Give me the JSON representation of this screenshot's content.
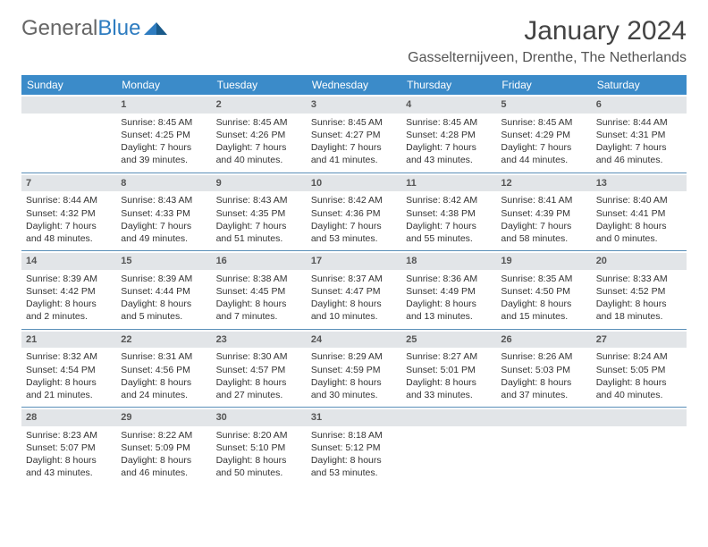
{
  "logo": {
    "text1": "General",
    "text2": "Blue"
  },
  "title": "January 2024",
  "location": "Gasselternijveen, Drenthe, The Netherlands",
  "colors": {
    "header_bg": "#3b8bc9",
    "header_text": "#ffffff",
    "daynum_bg": "#e2e5e8",
    "week_border": "#5a8fb8",
    "logo_blue": "#2e7cc0"
  },
  "day_labels": [
    "Sunday",
    "Monday",
    "Tuesday",
    "Wednesday",
    "Thursday",
    "Friday",
    "Saturday"
  ],
  "weeks": [
    [
      {
        "num": "",
        "info": ""
      },
      {
        "num": "1",
        "info": "Sunrise: 8:45 AM\nSunset: 4:25 PM\nDaylight: 7 hours and 39 minutes."
      },
      {
        "num": "2",
        "info": "Sunrise: 8:45 AM\nSunset: 4:26 PM\nDaylight: 7 hours and 40 minutes."
      },
      {
        "num": "3",
        "info": "Sunrise: 8:45 AM\nSunset: 4:27 PM\nDaylight: 7 hours and 41 minutes."
      },
      {
        "num": "4",
        "info": "Sunrise: 8:45 AM\nSunset: 4:28 PM\nDaylight: 7 hours and 43 minutes."
      },
      {
        "num": "5",
        "info": "Sunrise: 8:45 AM\nSunset: 4:29 PM\nDaylight: 7 hours and 44 minutes."
      },
      {
        "num": "6",
        "info": "Sunrise: 8:44 AM\nSunset: 4:31 PM\nDaylight: 7 hours and 46 minutes."
      }
    ],
    [
      {
        "num": "7",
        "info": "Sunrise: 8:44 AM\nSunset: 4:32 PM\nDaylight: 7 hours and 48 minutes."
      },
      {
        "num": "8",
        "info": "Sunrise: 8:43 AM\nSunset: 4:33 PM\nDaylight: 7 hours and 49 minutes."
      },
      {
        "num": "9",
        "info": "Sunrise: 8:43 AM\nSunset: 4:35 PM\nDaylight: 7 hours and 51 minutes."
      },
      {
        "num": "10",
        "info": "Sunrise: 8:42 AM\nSunset: 4:36 PM\nDaylight: 7 hours and 53 minutes."
      },
      {
        "num": "11",
        "info": "Sunrise: 8:42 AM\nSunset: 4:38 PM\nDaylight: 7 hours and 55 minutes."
      },
      {
        "num": "12",
        "info": "Sunrise: 8:41 AM\nSunset: 4:39 PM\nDaylight: 7 hours and 58 minutes."
      },
      {
        "num": "13",
        "info": "Sunrise: 8:40 AM\nSunset: 4:41 PM\nDaylight: 8 hours and 0 minutes."
      }
    ],
    [
      {
        "num": "14",
        "info": "Sunrise: 8:39 AM\nSunset: 4:42 PM\nDaylight: 8 hours and 2 minutes."
      },
      {
        "num": "15",
        "info": "Sunrise: 8:39 AM\nSunset: 4:44 PM\nDaylight: 8 hours and 5 minutes."
      },
      {
        "num": "16",
        "info": "Sunrise: 8:38 AM\nSunset: 4:45 PM\nDaylight: 8 hours and 7 minutes."
      },
      {
        "num": "17",
        "info": "Sunrise: 8:37 AM\nSunset: 4:47 PM\nDaylight: 8 hours and 10 minutes."
      },
      {
        "num": "18",
        "info": "Sunrise: 8:36 AM\nSunset: 4:49 PM\nDaylight: 8 hours and 13 minutes."
      },
      {
        "num": "19",
        "info": "Sunrise: 8:35 AM\nSunset: 4:50 PM\nDaylight: 8 hours and 15 minutes."
      },
      {
        "num": "20",
        "info": "Sunrise: 8:33 AM\nSunset: 4:52 PM\nDaylight: 8 hours and 18 minutes."
      }
    ],
    [
      {
        "num": "21",
        "info": "Sunrise: 8:32 AM\nSunset: 4:54 PM\nDaylight: 8 hours and 21 minutes."
      },
      {
        "num": "22",
        "info": "Sunrise: 8:31 AM\nSunset: 4:56 PM\nDaylight: 8 hours and 24 minutes."
      },
      {
        "num": "23",
        "info": "Sunrise: 8:30 AM\nSunset: 4:57 PM\nDaylight: 8 hours and 27 minutes."
      },
      {
        "num": "24",
        "info": "Sunrise: 8:29 AM\nSunset: 4:59 PM\nDaylight: 8 hours and 30 minutes."
      },
      {
        "num": "25",
        "info": "Sunrise: 8:27 AM\nSunset: 5:01 PM\nDaylight: 8 hours and 33 minutes."
      },
      {
        "num": "26",
        "info": "Sunrise: 8:26 AM\nSunset: 5:03 PM\nDaylight: 8 hours and 37 minutes."
      },
      {
        "num": "27",
        "info": "Sunrise: 8:24 AM\nSunset: 5:05 PM\nDaylight: 8 hours and 40 minutes."
      }
    ],
    [
      {
        "num": "28",
        "info": "Sunrise: 8:23 AM\nSunset: 5:07 PM\nDaylight: 8 hours and 43 minutes."
      },
      {
        "num": "29",
        "info": "Sunrise: 8:22 AM\nSunset: 5:09 PM\nDaylight: 8 hours and 46 minutes."
      },
      {
        "num": "30",
        "info": "Sunrise: 8:20 AM\nSunset: 5:10 PM\nDaylight: 8 hours and 50 minutes."
      },
      {
        "num": "31",
        "info": "Sunrise: 8:18 AM\nSunset: 5:12 PM\nDaylight: 8 hours and 53 minutes."
      },
      {
        "num": "",
        "info": ""
      },
      {
        "num": "",
        "info": ""
      },
      {
        "num": "",
        "info": ""
      }
    ]
  ]
}
